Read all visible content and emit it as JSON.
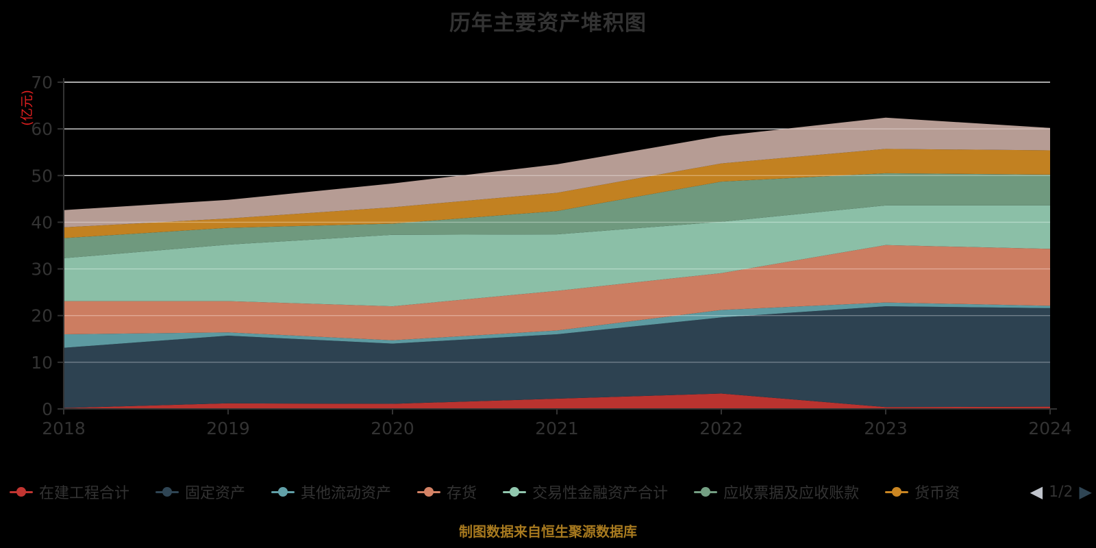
{
  "title": "历年主要资产堆积图",
  "y_axis": {
    "name": "(亿元)",
    "ticks": [
      0,
      10,
      20,
      30,
      40,
      50,
      60,
      70
    ],
    "min": 0,
    "max": 70
  },
  "x_axis": {
    "labels": [
      "2018",
      "2019",
      "2020",
      "2021",
      "2022",
      "2023",
      "2024"
    ]
  },
  "legend": {
    "items": [
      {
        "label": "在建工程合计",
        "color": "#c23531"
      },
      {
        "label": "固定资产",
        "color": "#2f4554"
      },
      {
        "label": "其他流动资产",
        "color": "#61a0a8"
      },
      {
        "label": "存货",
        "color": "#d48265"
      },
      {
        "label": "交易性金融资产合计",
        "color": "#91c7ae"
      },
      {
        "label": "应收票据及应收账款",
        "color": "#749f83"
      },
      {
        "label": "货币资",
        "color": "#ca8622"
      }
    ],
    "pager": {
      "prev_icon": "left-triangle",
      "page_text": "1/2",
      "next_icon": "right-triangle",
      "prev_color": "#c0c4cc",
      "next_color": "#2f4554"
    }
  },
  "footer": "制图数据来自恒生聚源数据库",
  "colors": {
    "background": "#000000",
    "grid": "#c9c9c9",
    "grid_overlay": "rgba(255,255,255,0.30)",
    "axis": "#333333",
    "tick_label": "#333333",
    "y_name": "#e01f1f",
    "footer": "#a87a1f"
  },
  "chart_data": {
    "type": "area",
    "stacked": true,
    "title": "历年主要资产堆积图",
    "ylabel": "(亿元)",
    "ylim": [
      0,
      70
    ],
    "grid": true,
    "legend_position": "bottom",
    "x": [
      "2018",
      "2019",
      "2020",
      "2021",
      "2022",
      "2023",
      "2024"
    ],
    "series": [
      {
        "name": "在建工程合计",
        "color": "#c23531",
        "values": [
          0.2,
          1.2,
          1.1,
          2.2,
          3.3,
          0.4,
          0.5
        ]
      },
      {
        "name": "固定资产",
        "color": "#2f4554",
        "values": [
          12.9,
          14.5,
          12.9,
          13.8,
          16.3,
          21.6,
          21.1
        ]
      },
      {
        "name": "其他流动资产",
        "color": "#61a0a8",
        "values": [
          2.9,
          0.7,
          0.7,
          0.8,
          1.6,
          0.8,
          0.5
        ]
      },
      {
        "name": "存货",
        "color": "#d48265",
        "values": [
          7.1,
          6.7,
          7.3,
          8.5,
          7.9,
          12.3,
          12.2
        ]
      },
      {
        "name": "交易性金融资产合计",
        "color": "#91c7ae",
        "values": [
          9.2,
          12.1,
          15.3,
          12.1,
          11.0,
          8.5,
          9.3
        ]
      },
      {
        "name": "应收票据及应收账款",
        "color": "#749f83",
        "values": [
          4.3,
          3.6,
          2.4,
          5.0,
          8.6,
          6.9,
          6.6
        ]
      },
      {
        "name": "货币资金",
        "color": "#ca8622",
        "values": [
          2.3,
          2.0,
          3.5,
          3.9,
          3.9,
          5.2,
          5.2
        ]
      },
      {
        "name": "",
        "color": "#bda29a",
        "values": [
          3.7,
          4.0,
          5.1,
          6.1,
          5.9,
          6.7,
          4.8
        ]
      }
    ]
  }
}
